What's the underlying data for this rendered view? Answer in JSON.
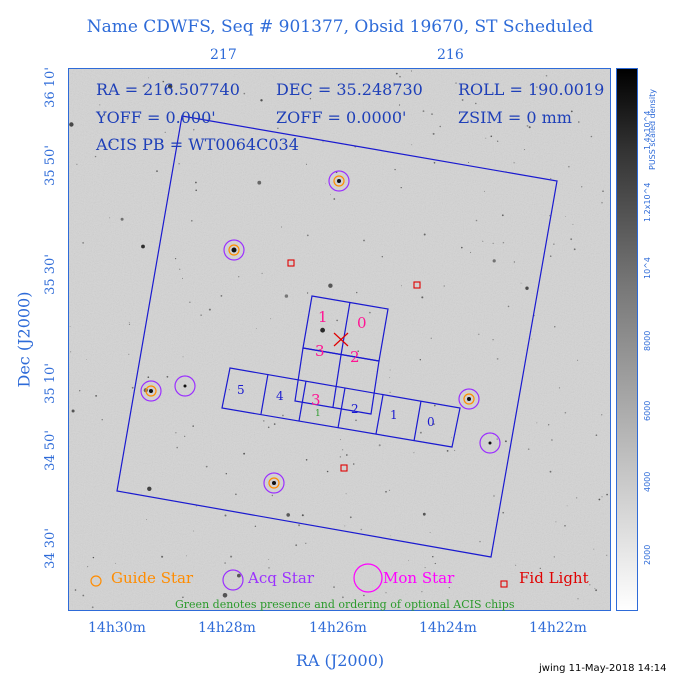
{
  "title": "Name CDWFS, Seq # 901377, Obsid 19670, ST Scheduled",
  "top_ra_ticks": [
    "217",
    "216"
  ],
  "info": {
    "ra": "RA = 216.507740",
    "dec": "DEC = 35.248730",
    "roll": "ROLL = 190.0019",
    "yoff": "YOFF =  0.000'",
    "zoff": "ZOFF =  0.0000'",
    "zsim": "ZSIM = 0 mm",
    "acis": "ACIS PB = WT0064C034"
  },
  "dec_ticks": [
    "36 10'",
    "35 50'",
    "35 30'",
    "35 10'",
    "34 50'",
    "34 30'"
  ],
  "ra_ticks": [
    "14h30m",
    "14h28m",
    "14h26m",
    "14h24m",
    "14h22m"
  ],
  "x_axis_label": "RA (J2000)",
  "y_axis_label": "Dec (J2000)",
  "colorbar": {
    "label": "PUSS scaled density",
    "ticks": [
      "2000",
      "4000",
      "6000",
      "8000",
      "10^4",
      "1.2x10^4",
      "1.4x10^4"
    ]
  },
  "chips": {
    "i_array": [
      "1",
      "0",
      "3",
      "2"
    ],
    "s_array": [
      "5",
      "4",
      "3",
      "2",
      "1",
      "0"
    ],
    "s_order": "1"
  },
  "legend": {
    "guide": "Guide Star",
    "acq": "Acq Star",
    "mon": "Mon Star",
    "fid": "Fid Light"
  },
  "note": "Green denotes presence and ordering of optional ACIS chips",
  "footer": "jwing 11-May-2018 14:14",
  "colors": {
    "axis": "#2e6bd8",
    "field": "#1a1ad0",
    "guide": "#ff8c00",
    "acq": "#9b30ff",
    "mon": "#ff00ff",
    "fid": "#e00000",
    "chip_label": "#ff1493",
    "optional": "#2a9a2a"
  }
}
